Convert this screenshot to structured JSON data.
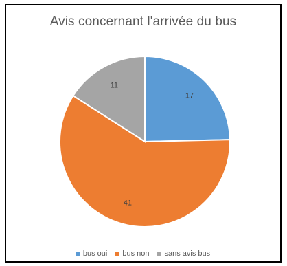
{
  "chart_data": {
    "type": "pie",
    "title": "Avis concernant l'arrivée du bus",
    "categories": [
      "bus oui",
      "bus non",
      "sans avis bus"
    ],
    "values": [
      17,
      41,
      11
    ],
    "colors": [
      "#5B9BD5",
      "#ED7D31",
      "#A5A5A5"
    ],
    "data_labels": [
      "17",
      "41",
      "11"
    ],
    "legend_position": "bottom"
  }
}
